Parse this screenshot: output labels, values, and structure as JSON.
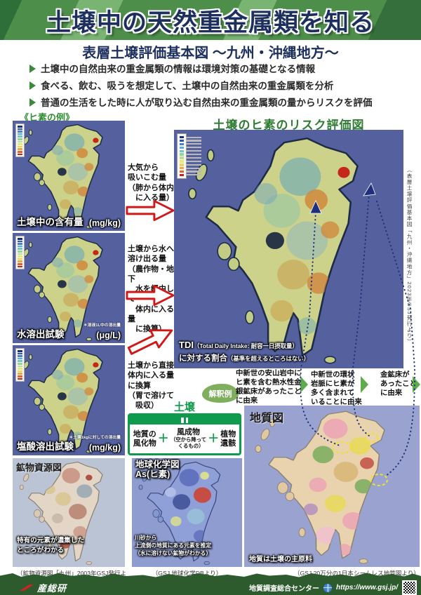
{
  "header": {
    "title": "土壌中の天然重金属類を知る",
    "subtitle": "表層土壌評価基本図 〜九州・沖縄地方〜"
  },
  "bullets": [
    "土壌中の自然由来の重金属類の情報は環境対策の基礎となる情報",
    "食べる、飲む、吸うを想定して、土壌中の自然由来の重金属類を分析",
    "普通の生活をした時に人が取り込む自然由来の重金属類の量からリスクを評価"
  ],
  "example_label": "《ヒ素の例》",
  "left_maps": [
    {
      "label": "土壌中の含有量",
      "unit": "(mg/kg)",
      "note": ""
    },
    {
      "label": "水溶出試験",
      "unit": "(μg/L)",
      "note": "＊溶液1L中の溶出量"
    },
    {
      "label": "塩酸溶出試験",
      "unit": "(mg/kg)",
      "note": "＊土壌1kgに対しての溶出量"
    }
  ],
  "pathways": [
    "大気から\n吸いこむ量\n（肺から体内\n　に入る量）",
    "土壌から水へ\n溶け出る量\n（農作物・地下\n　水を経由して\n　体内に入る量\n　に換算）",
    "土壌から直接\n体内に入る量\nに換算\n（胃で溶けて\n　吸収）"
  ],
  "risk_map": {
    "title": "土壌のヒ素のリスク評価図",
    "tdi": "TDI",
    "tdi_paren": "（Total Daily Intake: 耐容一日摂取量）",
    "tdi_line2": "に対する割合",
    "tdi_line2_paren": "（基準を超えるところはない）",
    "side_caption": "（表層土壌評価基本図「九州・沖縄地方」2023年GSJ発行より）"
  },
  "interp": {
    "label": "解釈例",
    "items": [
      "中新世の安山岩中に\nヒ素を含む熱水性金\n銀鉱床があったこと\nに由来",
      "中新世の環状\n岩脈にヒ素が\n多く含まれて\nいることに由来",
      "金鉱床が\nあったこと\nに由来"
    ]
  },
  "soil": {
    "title": "土壌",
    "term1": "地質の\n風化物",
    "term2_main": "風成物",
    "term2_sub": "（空から降って\n　くるもの）",
    "term3": "植物\n遺骸",
    "plus": "＋"
  },
  "bottom_maps": [
    {
      "label": "鉱物資源図",
      "note": "特有の元素が濃集した\nところがわかる",
      "caption": "（鉱物資源図「九州」2003年GSJ発行より）"
    },
    {
      "label": "地球化学図\nAs(ヒ素)",
      "note": "川砂から\n上流側の地質にある元素を推定\n（水に溶けない鉱物がわかる）",
      "caption": "（GSJ 地球化学DBより）"
    },
    {
      "label": "地質図",
      "note": "地質は土壌の主原料",
      "caption": "（GSJ 20万分の1日本シームレス地質図より）"
    }
  ],
  "footer": {
    "brand": "産総研",
    "org": "地質調査総合センター",
    "url": "https://www.gsj.jp/"
  },
  "legend": {
    "colors": [
      "#16307e",
      "#2c56b4",
      "#4a80cc",
      "#62aad8",
      "#74c8c4",
      "#96d49e",
      "#c2dc8c",
      "#e6e87e",
      "#ecd45e",
      "#eca84a",
      "#e0642e",
      "#c42222"
    ]
  },
  "colors": {
    "header_green": "#4e8e4b",
    "navy": "#1c2f5f",
    "accent_green": "#2f7d32",
    "box_green": "#0f9b4d",
    "arrow_red": "#d01818",
    "footer_green": "#2d5b2e",
    "ocean": "#55619f"
  }
}
